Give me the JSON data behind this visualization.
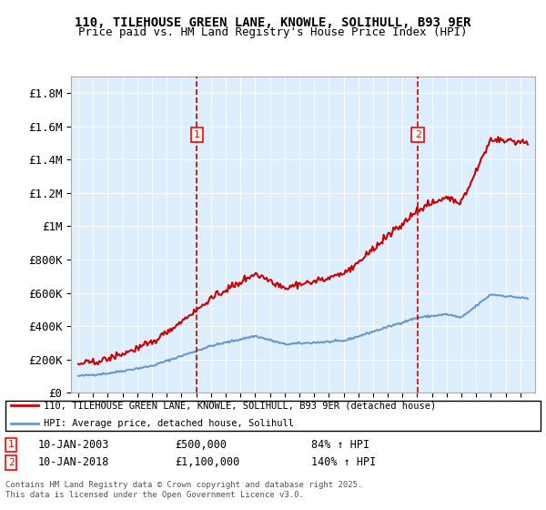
{
  "title_line1": "110, TILEHOUSE GREEN LANE, KNOWLE, SOLIHULL, B93 9ER",
  "title_line2": "Price paid vs. HM Land Registry's House Price Index (HPI)",
  "ylim": [
    0,
    1900000
  ],
  "yticks": [
    0,
    200000,
    400000,
    600000,
    800000,
    1000000,
    1200000,
    1400000,
    1600000,
    1800000
  ],
  "ytick_labels": [
    "£0",
    "£200K",
    "£400K",
    "£600K",
    "£800K",
    "£1M",
    "£1.2M",
    "£1.4M",
    "£1.6M",
    "£1.8M"
  ],
  "sale1_date": "10-JAN-2003",
  "sale1_price": "£500,000",
  "sale1_hpi": "84% ↑ HPI",
  "sale2_date": "10-JAN-2018",
  "sale2_price": "£1,100,000",
  "sale2_hpi": "140% ↑ HPI",
  "sale1_x": 2003.04,
  "sale2_x": 2018.04,
  "legend_line1": "110, TILEHOUSE GREEN LANE, KNOWLE, SOLIHULL, B93 9ER (detached house)",
  "legend_line2": "HPI: Average price, detached house, Solihull",
  "footnote_line1": "Contains HM Land Registry data © Crown copyright and database right 2025.",
  "footnote_line2": "This data is licensed under the Open Government Licence v3.0.",
  "line_color_red": "#cc0000",
  "line_color_blue": "#6699cc",
  "plot_bg_color": "#ddeeff",
  "fig_bg_color": "#ffffff",
  "grid_color": "#ffffff",
  "dashed_line_color": "#cc0000",
  "xlim_start": 1994.5,
  "xlim_end": 2026.0,
  "xticks_start": 1995,
  "xticks_end": 2026
}
